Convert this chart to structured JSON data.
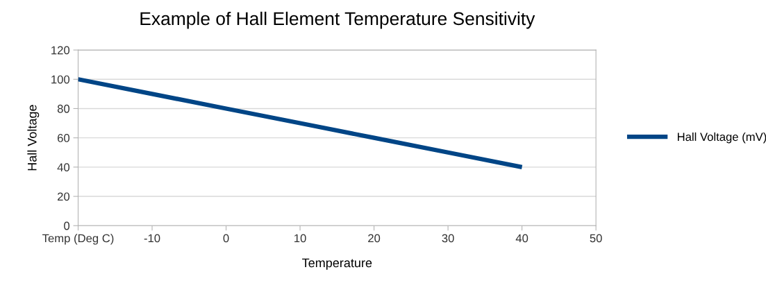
{
  "chart_data": {
    "type": "line",
    "title": "Example of Hall Element Temperature Sensitivity",
    "xlabel": "Temperature",
    "ylabel": "Hall Voltage",
    "x": [
      -20,
      -10,
      0,
      10,
      20,
      30,
      40
    ],
    "series": [
      {
        "name": "Hall Voltage (mV)",
        "color": "#004586",
        "values": [
          100,
          90,
          80,
          70,
          60,
          50,
          40
        ]
      }
    ],
    "xlim": [
      -20,
      50
    ],
    "xticks": [
      {
        "value": -20,
        "label": "Temp (Deg C)"
      },
      -10,
      0,
      10,
      20,
      30,
      40,
      50
    ],
    "ylim": [
      0,
      120
    ],
    "yticks": [
      0,
      20,
      40,
      60,
      80,
      100,
      120
    ],
    "grid": "y",
    "legend": "right",
    "marker": "none",
    "line_style": "solid"
  }
}
